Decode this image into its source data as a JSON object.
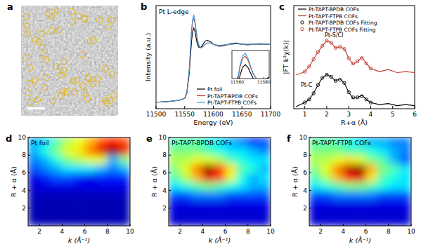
{
  "chart_data": [
    {
      "type": "image",
      "panel": "a"
    },
    {
      "type": "line",
      "panel": "b",
      "title": "Pt L-edge",
      "x_label": "Energy (eV)",
      "y_label": "Intensity (a.u.)",
      "xlim": [
        11500,
        11700
      ],
      "xticks": [
        11500,
        11550,
        11600,
        11650,
        11700
      ],
      "ylim": [
        0,
        1.6
      ],
      "tick_labels": "x",
      "x": [
        11500,
        11520,
        11540,
        11550,
        11554,
        11558,
        11560,
        11562,
        11564,
        11566,
        11568,
        11570,
        11572,
        11575,
        11578,
        11582,
        11586,
        11590,
        11595,
        11600,
        11610,
        11620,
        11630,
        11640,
        11650,
        11660,
        11670,
        11680,
        11690,
        11700
      ],
      "series": [
        {
          "name": "Pt foil",
          "color": "#000000",
          "values": [
            0.1,
            0.11,
            0.13,
            0.16,
            0.25,
            0.55,
            0.8,
            1.05,
            1.2,
            1.25,
            1.2,
            1.1,
            1.0,
            0.95,
            0.95,
            1.0,
            1.05,
            1.06,
            1.04,
            1.0,
            0.97,
            0.98,
            1.01,
            1.02,
            1.0,
            0.99,
            1.0,
            1.01,
            1.0,
            1.0
          ]
        },
        {
          "name": "Pt-TAPT-BPDB COFs",
          "color": "#c0392b",
          "values": [
            0.1,
            0.11,
            0.13,
            0.16,
            0.26,
            0.6,
            0.9,
            1.2,
            1.36,
            1.4,
            1.33,
            1.2,
            1.08,
            0.98,
            0.95,
            0.97,
            1.0,
            1.02,
            1.02,
            1.0,
            0.98,
            0.99,
            1.0,
            1.01,
            1.0,
            1.0,
            1.0,
            1.0,
            1.0,
            1.0
          ]
        },
        {
          "name": "Pt-TAPT-FTPB COFs",
          "color": "#3a9bd9",
          "values": [
            0.1,
            0.11,
            0.13,
            0.16,
            0.27,
            0.62,
            0.92,
            1.23,
            1.4,
            1.45,
            1.37,
            1.22,
            1.09,
            0.98,
            0.94,
            0.96,
            1.0,
            1.02,
            1.02,
            1.0,
            0.98,
            0.99,
            1.0,
            1.01,
            1.0,
            1.0,
            1.0,
            1.0,
            1.0,
            1.0
          ]
        }
      ],
      "inset": {
        "xlim": [
          11556,
          11584
        ],
        "ylim": [
          1.0,
          1.5
        ],
        "xticks": [
          11560,
          11580
        ]
      }
    },
    {
      "type": "line",
      "panel": "c",
      "x_label": "R+α (Å)",
      "y_label": "|FT k²χ(k)|",
      "xlim": [
        0.5,
        6
      ],
      "xticks": [
        1,
        2,
        3,
        4,
        5,
        6
      ],
      "ylim": [
        0,
        10
      ],
      "tick_labels": "x",
      "series": [
        {
          "name": "Pt-TAPT-BPDB COFs",
          "color": "#000000",
          "line_style": "solid",
          "x": [
            0.6,
            0.8,
            1.0,
            1.2,
            1.4,
            1.6,
            1.8,
            2.0,
            2.2,
            2.4,
            2.6,
            2.8,
            3.0,
            3.2,
            3.4,
            3.6,
            3.8,
            4.0,
            4.4,
            4.8,
            5.2,
            5.6,
            6.0
          ],
          "values": [
            0.2,
            0.4,
            0.6,
            0.9,
            1.5,
            2.3,
            3.0,
            3.3,
            3.1,
            2.7,
            2.9,
            2.5,
            1.6,
            1.0,
            1.1,
            1.3,
            0.9,
            0.6,
            0.4,
            0.5,
            0.3,
            0.4,
            0.3
          ]
        },
        {
          "name": "Pt-TAPT-FTPB COFs",
          "color": "#c0392b",
          "line_style": "solid",
          "x": [
            0.6,
            0.8,
            1.0,
            1.2,
            1.4,
            1.6,
            1.8,
            2.0,
            2.2,
            2.4,
            2.6,
            2.8,
            3.0,
            3.2,
            3.4,
            3.6,
            3.8,
            4.0,
            4.4,
            4.8,
            5.2,
            5.6,
            6.0
          ],
          "values": [
            3.3,
            3.4,
            3.6,
            4.1,
            4.8,
            5.5,
            6.1,
            6.6,
            6.4,
            5.9,
            6.0,
            5.8,
            4.9,
            4.3,
            4.6,
            5.0,
            4.4,
            3.9,
            3.6,
            3.8,
            3.5,
            3.6,
            3.5
          ]
        },
        {
          "name": "Pt-TAPT-BPDB COFs Fitting",
          "color": "#000000",
          "marker": "circle",
          "line_style": "none",
          "x": [
            1.0,
            1.2,
            1.4,
            1.6,
            1.8,
            2.0,
            2.2,
            2.4,
            2.6,
            2.8,
            3.0,
            3.2,
            3.4,
            3.6,
            3.8,
            4.0
          ],
          "values": [
            0.6,
            0.9,
            1.5,
            2.3,
            3.0,
            3.3,
            3.1,
            2.7,
            2.8,
            2.5,
            1.6,
            1.1,
            1.1,
            1.2,
            0.9,
            0.6
          ]
        },
        {
          "name": "Pt-TAPT-FTPB COFs Fitting",
          "color": "#c0392b",
          "marker": "circle",
          "line_style": "none",
          "x": [
            1.0,
            1.2,
            1.4,
            1.6,
            1.8,
            2.0,
            2.2,
            2.4,
            2.6,
            2.8,
            3.0,
            3.2,
            3.4,
            3.6,
            3.8,
            4.0
          ],
          "values": [
            3.6,
            4.1,
            4.8,
            5.5,
            6.1,
            6.6,
            6.4,
            5.9,
            6.0,
            5.8,
            4.9,
            4.4,
            4.6,
            4.9,
            4.4,
            3.9
          ]
        }
      ],
      "annotations": [
        "Pt-S/Cl",
        "Pt-C"
      ]
    },
    {
      "type": "heatmap",
      "panel": "d",
      "title": "Pt foil",
      "x_label": "k (Å⁻¹)",
      "y_label": "R + α (Å)",
      "xlim": [
        1,
        10
      ],
      "xticks": [
        2,
        4,
        6,
        8,
        10
      ],
      "ylim": [
        0,
        10
      ],
      "yticks": [
        2,
        4,
        6,
        8,
        10
      ],
      "color_range": [
        0,
        1
      ],
      "x_cells": [
        1.5,
        2.5,
        3.5,
        4.5,
        5.5,
        6.5,
        7.5,
        8.5,
        9.5
      ],
      "y_cells": [
        0.5,
        1.5,
        2.5,
        3.5,
        4.5,
        5.5,
        6.5,
        7.5,
        8.5,
        9.5
      ],
      "cells": [
        [
          0.05,
          0.05,
          0.05,
          0.05,
          0.05,
          0.05,
          0.05,
          0.05,
          0.05
        ],
        [
          0.05,
          0.05,
          0.05,
          0.05,
          0.05,
          0.05,
          0.05,
          0.05,
          0.05
        ],
        [
          0.05,
          0.05,
          0.05,
          0.05,
          0.05,
          0.05,
          0.05,
          0.05,
          0.05
        ],
        [
          0.06,
          0.06,
          0.06,
          0.06,
          0.06,
          0.06,
          0.06,
          0.06,
          0.06
        ],
        [
          0.08,
          0.1,
          0.1,
          0.1,
          0.1,
          0.1,
          0.1,
          0.1,
          0.1
        ],
        [
          0.1,
          0.15,
          0.2,
          0.2,
          0.15,
          0.1,
          0.15,
          0.15,
          0.15
        ],
        [
          0.2,
          0.25,
          0.3,
          0.35,
          0.35,
          0.35,
          0.3,
          0.25,
          0.3
        ],
        [
          0.25,
          0.3,
          0.4,
          0.5,
          0.55,
          0.6,
          0.6,
          0.3,
          0.5
        ],
        [
          0.3,
          0.4,
          0.5,
          0.6,
          0.65,
          0.75,
          0.9,
          1.0,
          0.9
        ],
        [
          0.3,
          0.35,
          0.45,
          0.55,
          0.6,
          0.7,
          0.8,
          0.85,
          0.8
        ]
      ]
    },
    {
      "type": "heatmap",
      "panel": "e",
      "title": "Pt-TAPT-BPDB COFs",
      "x_label": "k (Å⁻¹)",
      "y_label": "R + α (Å)",
      "xlim": [
        1,
        10
      ],
      "xticks": [
        2,
        4,
        6,
        8,
        10
      ],
      "ylim": [
        0,
        10
      ],
      "yticks": [
        2,
        4,
        6,
        8,
        10
      ],
      "color_range": [
        0,
        1
      ],
      "x_cells": [
        1.5,
        2.5,
        3.5,
        4.5,
        5.5,
        6.5,
        7.5,
        8.5,
        9.5
      ],
      "y_cells": [
        0.5,
        1.5,
        2.5,
        3.5,
        4.5,
        5.5,
        6.5,
        7.5,
        8.5,
        9.5
      ],
      "cells": [
        [
          0.08,
          0.08,
          0.08,
          0.08,
          0.08,
          0.08,
          0.08,
          0.08,
          0.08
        ],
        [
          0.08,
          0.08,
          0.08,
          0.08,
          0.08,
          0.08,
          0.08,
          0.08,
          0.08
        ],
        [
          0.1,
          0.1,
          0.1,
          0.1,
          0.1,
          0.1,
          0.1,
          0.1,
          0.1
        ],
        [
          0.2,
          0.2,
          0.25,
          0.25,
          0.25,
          0.2,
          0.2,
          0.2,
          0.2
        ],
        [
          0.35,
          0.4,
          0.45,
          0.5,
          0.45,
          0.4,
          0.35,
          0.3,
          0.3
        ],
        [
          0.45,
          0.55,
          0.7,
          0.9,
          0.8,
          0.6,
          0.4,
          0.3,
          0.35
        ],
        [
          0.5,
          0.6,
          0.75,
          1.0,
          0.85,
          0.65,
          0.45,
          0.4,
          0.3
        ],
        [
          0.55,
          0.55,
          0.6,
          0.6,
          0.55,
          0.45,
          0.4,
          0.35,
          0.35
        ],
        [
          0.5,
          0.5,
          0.5,
          0.45,
          0.4,
          0.35,
          0.35,
          0.3,
          0.25
        ],
        [
          0.45,
          0.45,
          0.45,
          0.4,
          0.35,
          0.3,
          0.25,
          0.15,
          0.2
        ]
      ]
    },
    {
      "type": "heatmap",
      "panel": "f",
      "title": "Pt-TAPT-FTPB COFs",
      "x_label": "k (Å⁻¹)",
      "y_label": "R + α (Å)",
      "xlim": [
        1,
        10
      ],
      "xticks": [
        2,
        4,
        6,
        8,
        10
      ],
      "ylim": [
        0,
        10
      ],
      "yticks": [
        2,
        4,
        6,
        8,
        10
      ],
      "color_range": [
        0,
        1
      ],
      "x_cells": [
        1.5,
        2.5,
        3.5,
        4.5,
        5.5,
        6.5,
        7.5,
        8.5,
        9.5
      ],
      "y_cells": [
        0.5,
        1.5,
        2.5,
        3.5,
        4.5,
        5.5,
        6.5,
        7.5,
        8.5,
        9.5
      ],
      "cells": [
        [
          0.08,
          0.08,
          0.08,
          0.08,
          0.08,
          0.08,
          0.08,
          0.08,
          0.08
        ],
        [
          0.08,
          0.08,
          0.08,
          0.08,
          0.08,
          0.08,
          0.08,
          0.08,
          0.08
        ],
        [
          0.1,
          0.1,
          0.1,
          0.1,
          0.1,
          0.1,
          0.1,
          0.1,
          0.1
        ],
        [
          0.2,
          0.2,
          0.25,
          0.25,
          0.25,
          0.25,
          0.2,
          0.2,
          0.2
        ],
        [
          0.35,
          0.4,
          0.45,
          0.5,
          0.5,
          0.45,
          0.4,
          0.35,
          0.35
        ],
        [
          0.45,
          0.55,
          0.7,
          0.85,
          0.9,
          0.65,
          0.45,
          0.4,
          0.35
        ],
        [
          0.5,
          0.6,
          0.75,
          0.95,
          1.0,
          0.7,
          0.5,
          0.45,
          0.35
        ],
        [
          0.55,
          0.55,
          0.6,
          0.65,
          0.6,
          0.5,
          0.45,
          0.3,
          0.2
        ],
        [
          0.5,
          0.5,
          0.5,
          0.45,
          0.45,
          0.4,
          0.35,
          0.3,
          0.25
        ],
        [
          0.45,
          0.45,
          0.45,
          0.4,
          0.35,
          0.3,
          0.3,
          0.25,
          0.25
        ]
      ]
    }
  ]
}
